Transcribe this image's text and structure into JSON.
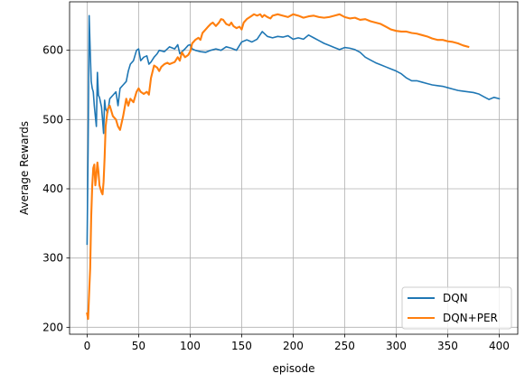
{
  "chart_data": {
    "type": "line",
    "title": "",
    "xlabel": "episode",
    "ylabel": "Average Rewards",
    "xlim": [
      -17,
      418
    ],
    "ylim": [
      190,
      670
    ],
    "xticks": [
      0,
      50,
      100,
      150,
      200,
      250,
      300,
      350,
      400
    ],
    "yticks": [
      200,
      300,
      400,
      500,
      600
    ],
    "grid": true,
    "legend_position": "lower-right",
    "series": [
      {
        "name": "DQN",
        "color": "#1f77b4",
        "points": [
          [
            0,
            320
          ],
          [
            1,
            460
          ],
          [
            2,
            650
          ],
          [
            3,
            600
          ],
          [
            4,
            555
          ],
          [
            5,
            545
          ],
          [
            6,
            540
          ],
          [
            7,
            520
          ],
          [
            8,
            505
          ],
          [
            9,
            490
          ],
          [
            10,
            568
          ],
          [
            11,
            535
          ],
          [
            12,
            532
          ],
          [
            13,
            525
          ],
          [
            14,
            518
          ],
          [
            15,
            500
          ],
          [
            16,
            480
          ],
          [
            17,
            528
          ],
          [
            18,
            515
          ],
          [
            20,
            510
          ],
          [
            22,
            530
          ],
          [
            25,
            535
          ],
          [
            28,
            540
          ],
          [
            30,
            520
          ],
          [
            32,
            545
          ],
          [
            35,
            550
          ],
          [
            38,
            555
          ],
          [
            40,
            570
          ],
          [
            42,
            580
          ],
          [
            45,
            585
          ],
          [
            48,
            600
          ],
          [
            50,
            602
          ],
          [
            52,
            585
          ],
          [
            55,
            590
          ],
          [
            58,
            592
          ],
          [
            60,
            580
          ],
          [
            62,
            583
          ],
          [
            65,
            590
          ],
          [
            68,
            595
          ],
          [
            70,
            600
          ],
          [
            75,
            598
          ],
          [
            80,
            605
          ],
          [
            85,
            602
          ],
          [
            88,
            608
          ],
          [
            90,
            595
          ],
          [
            95,
            602
          ],
          [
            98,
            607
          ],
          [
            100,
            608
          ],
          [
            102,
            602
          ],
          [
            105,
            600
          ],
          [
            110,
            598
          ],
          [
            115,
            597
          ],
          [
            120,
            600
          ],
          [
            125,
            602
          ],
          [
            130,
            600
          ],
          [
            135,
            605
          ],
          [
            140,
            603
          ],
          [
            145,
            600
          ],
          [
            150,
            612
          ],
          [
            155,
            615
          ],
          [
            160,
            612
          ],
          [
            165,
            616
          ],
          [
            170,
            627
          ],
          [
            175,
            620
          ],
          [
            180,
            618
          ],
          [
            185,
            620
          ],
          [
            190,
            619
          ],
          [
            195,
            621
          ],
          [
            200,
            616
          ],
          [
            205,
            618
          ],
          [
            210,
            616
          ],
          [
            215,
            622
          ],
          [
            220,
            618
          ],
          [
            225,
            614
          ],
          [
            230,
            610
          ],
          [
            235,
            607
          ],
          [
            240,
            604
          ],
          [
            245,
            601
          ],
          [
            250,
            604
          ],
          [
            255,
            603
          ],
          [
            260,
            601
          ],
          [
            265,
            597
          ],
          [
            270,
            590
          ],
          [
            275,
            586
          ],
          [
            280,
            582
          ],
          [
            285,
            579
          ],
          [
            290,
            576
          ],
          [
            295,
            573
          ],
          [
            300,
            570
          ],
          [
            305,
            566
          ],
          [
            310,
            560
          ],
          [
            315,
            556
          ],
          [
            320,
            556
          ],
          [
            325,
            554
          ],
          [
            330,
            552
          ],
          [
            335,
            550
          ],
          [
            340,
            549
          ],
          [
            345,
            548
          ],
          [
            350,
            546
          ],
          [
            355,
            544
          ],
          [
            360,
            542
          ],
          [
            365,
            541
          ],
          [
            370,
            540
          ],
          [
            375,
            539
          ],
          [
            380,
            537
          ],
          [
            385,
            533
          ],
          [
            390,
            529
          ],
          [
            395,
            532
          ],
          [
            400,
            530
          ]
        ]
      },
      {
        "name": "DQN+PER",
        "color": "#ff7f0e",
        "points": [
          [
            0,
            220
          ],
          [
            1,
            212
          ],
          [
            2,
            250
          ],
          [
            3,
            285
          ],
          [
            4,
            360
          ],
          [
            5,
            405
          ],
          [
            6,
            430
          ],
          [
            7,
            435
          ],
          [
            8,
            405
          ],
          [
            9,
            420
          ],
          [
            10,
            438
          ],
          [
            11,
            425
          ],
          [
            12,
            405
          ],
          [
            13,
            400
          ],
          [
            14,
            395
          ],
          [
            15,
            392
          ],
          [
            16,
            410
          ],
          [
            17,
            445
          ],
          [
            18,
            490
          ],
          [
            20,
            515
          ],
          [
            22,
            520
          ],
          [
            25,
            505
          ],
          [
            28,
            500
          ],
          [
            30,
            490
          ],
          [
            32,
            485
          ],
          [
            35,
            505
          ],
          [
            38,
            530
          ],
          [
            40,
            520
          ],
          [
            42,
            530
          ],
          [
            45,
            525
          ],
          [
            48,
            540
          ],
          [
            50,
            545
          ],
          [
            52,
            540
          ],
          [
            55,
            537
          ],
          [
            58,
            540
          ],
          [
            60,
            536
          ],
          [
            62,
            560
          ],
          [
            65,
            578
          ],
          [
            68,
            575
          ],
          [
            70,
            570
          ],
          [
            72,
            576
          ],
          [
            75,
            580
          ],
          [
            78,
            582
          ],
          [
            80,
            580
          ],
          [
            85,
            583
          ],
          [
            88,
            590
          ],
          [
            90,
            585
          ],
          [
            92,
            597
          ],
          [
            95,
            590
          ],
          [
            98,
            593
          ],
          [
            100,
            598
          ],
          [
            102,
            610
          ],
          [
            105,
            615
          ],
          [
            108,
            618
          ],
          [
            110,
            615
          ],
          [
            112,
            625
          ],
          [
            115,
            630
          ],
          [
            118,
            635
          ],
          [
            120,
            638
          ],
          [
            122,
            640
          ],
          [
            125,
            635
          ],
          [
            128,
            640
          ],
          [
            130,
            645
          ],
          [
            132,
            644
          ],
          [
            135,
            638
          ],
          [
            138,
            636
          ],
          [
            140,
            640
          ],
          [
            142,
            635
          ],
          [
            145,
            632
          ],
          [
            148,
            634
          ],
          [
            150,
            630
          ],
          [
            152,
            640
          ],
          [
            155,
            645
          ],
          [
            158,
            648
          ],
          [
            160,
            650
          ],
          [
            162,
            652
          ],
          [
            165,
            650
          ],
          [
            168,
            652
          ],
          [
            170,
            648
          ],
          [
            172,
            651
          ],
          [
            175,
            648
          ],
          [
            178,
            646
          ],
          [
            180,
            650
          ],
          [
            185,
            652
          ],
          [
            190,
            650
          ],
          [
            195,
            648
          ],
          [
            200,
            652
          ],
          [
            205,
            650
          ],
          [
            210,
            647
          ],
          [
            215,
            649
          ],
          [
            220,
            650
          ],
          [
            225,
            648
          ],
          [
            230,
            647
          ],
          [
            235,
            648
          ],
          [
            240,
            650
          ],
          [
            245,
            652
          ],
          [
            250,
            648
          ],
          [
            255,
            646
          ],
          [
            260,
            647
          ],
          [
            265,
            644
          ],
          [
            270,
            645
          ],
          [
            275,
            642
          ],
          [
            280,
            640
          ],
          [
            285,
            638
          ],
          [
            290,
            634
          ],
          [
            295,
            630
          ],
          [
            300,
            628
          ],
          [
            305,
            627
          ],
          [
            310,
            627
          ],
          [
            315,
            625
          ],
          [
            320,
            624
          ],
          [
            325,
            622
          ],
          [
            330,
            620
          ],
          [
            335,
            617
          ],
          [
            340,
            615
          ],
          [
            345,
            615
          ],
          [
            350,
            613
          ],
          [
            355,
            612
          ],
          [
            360,
            610
          ],
          [
            365,
            607
          ],
          [
            370,
            605
          ]
        ]
      }
    ]
  }
}
